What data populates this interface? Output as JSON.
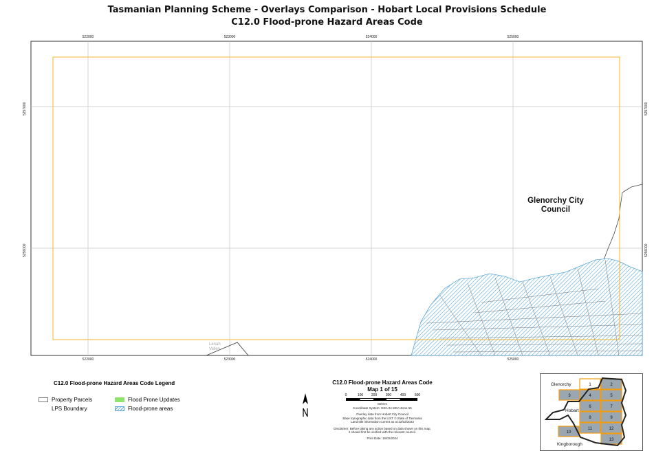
{
  "header": {
    "title": "Tasmanian Planning Scheme - Overlays Comparison - Hobart Local Provisions Schedule",
    "subtitle": "C12.0 Flood-prone Hazard Areas Code"
  },
  "map": {
    "eastings": [
      "522000",
      "523000",
      "524000",
      "525000"
    ],
    "northings": [
      "5257000",
      "5256000"
    ],
    "council_label_line1": "Glenorchy City",
    "council_label_line2": "Council",
    "place_label": "Lenah Valley",
    "colors": {
      "lps_boundary": "#f0b429",
      "flood_hatch": "#5aa8d8",
      "flood_updates": "#8de36b",
      "grid": "#bdbdbd"
    }
  },
  "legend": {
    "title": "C12.0 Flood-prone Hazard Areas Code Legend",
    "items": [
      {
        "label": "Property Parcels",
        "icon": "parcel-swatch"
      },
      {
        "label": "LPS Boundary",
        "icon": "none"
      },
      {
        "label": "Flood Prone Updates",
        "icon": "green-fill-swatch"
      },
      {
        "label": "Flood-prone areas",
        "icon": "blue-hatch-swatch"
      }
    ]
  },
  "info": {
    "title": "C12.0 Flood-prone Hazard Areas Code",
    "map_number": "Map 1 of 15",
    "scale_labels": [
      "0",
      "100",
      "200",
      "300",
      "400",
      "500"
    ],
    "scale_unit": "Metres",
    "coordinate_system": "Coordinate System: GDA 94 MGA Zone 55",
    "source1": "Overlay data from Hobart City Council",
    "source2": "Base topographic data from the LIST © State of Tasmania",
    "source3": "Land title information current as at 22/03/2023",
    "disclaimer1": "Disclaimer: Before taking any action based on data shown on this map,",
    "disclaimer2": "it should first be verified with the relevant council.",
    "print_date": "Print Date: 16/02/2024"
  },
  "inset": {
    "labels": {
      "glenorchy": "Glenorchy",
      "hobart": "Hobart",
      "kingborough": "Kingborough"
    },
    "tiles": [
      "1",
      "2",
      "3",
      "4",
      "5",
      "6",
      "7",
      "8",
      "9",
      "10",
      "11",
      "12",
      "13"
    ],
    "highlight_tile": "1"
  }
}
